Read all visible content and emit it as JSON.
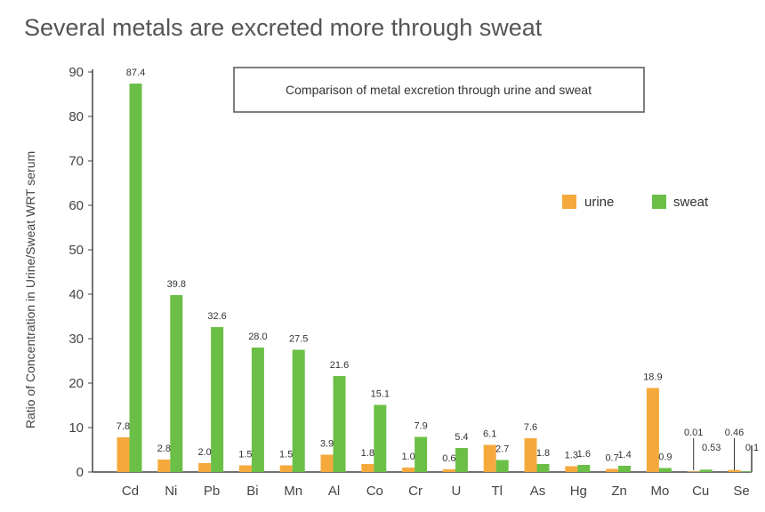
{
  "chart_data": {
    "type": "bar",
    "title": "Several metals are excreted more through sweat",
    "subtitle": "Comparison of metal excretion through urine and sweat",
    "xlabel": "",
    "ylabel": "Ratio of Concentration in Urine/Sweat WRT serum",
    "ylim": [
      0,
      90
    ],
    "yticks": [
      0,
      10,
      20,
      30,
      40,
      50,
      60,
      70,
      80,
      90
    ],
    "grid": false,
    "legend_position": "right",
    "categories": [
      "Cd",
      "Ni",
      "Pb",
      "Bi",
      "Mn",
      "Al",
      "Co",
      "Cr",
      "U",
      "Tl",
      "As",
      "Hg",
      "Zn",
      "Mo",
      "Cu",
      "Se"
    ],
    "series": [
      {
        "name": "urine",
        "color": "#f5a93c",
        "values": [
          7.8,
          2.8,
          2.0,
          1.5,
          1.5,
          3.9,
          1.8,
          1.0,
          0.6,
          6.1,
          7.6,
          1.3,
          0.7,
          18.9,
          0.01,
          0.46
        ],
        "labels": [
          "7.8",
          "2.8",
          "2.0",
          "1.5",
          "1.5",
          "3.9",
          "1.8",
          "1.0",
          "0.6",
          "6.1",
          "7.6",
          "1.3",
          "0.7",
          "18.9",
          "0.01",
          "0.46"
        ]
      },
      {
        "name": "sweat",
        "color": "#6bbf47",
        "values": [
          87.4,
          39.8,
          32.6,
          28.0,
          27.5,
          21.6,
          15.1,
          7.9,
          5.4,
          2.7,
          1.8,
          1.6,
          1.4,
          0.9,
          0.53,
          0.1
        ],
        "labels": [
          "87.4",
          "39.8",
          "32.6",
          "28.0",
          "27.5",
          "21.6",
          "15.1",
          "7.9",
          "5.4",
          "2.7",
          "1.8",
          "1.6",
          "1.4",
          "0.9",
          "0.53",
          "0.1"
        ]
      }
    ]
  }
}
